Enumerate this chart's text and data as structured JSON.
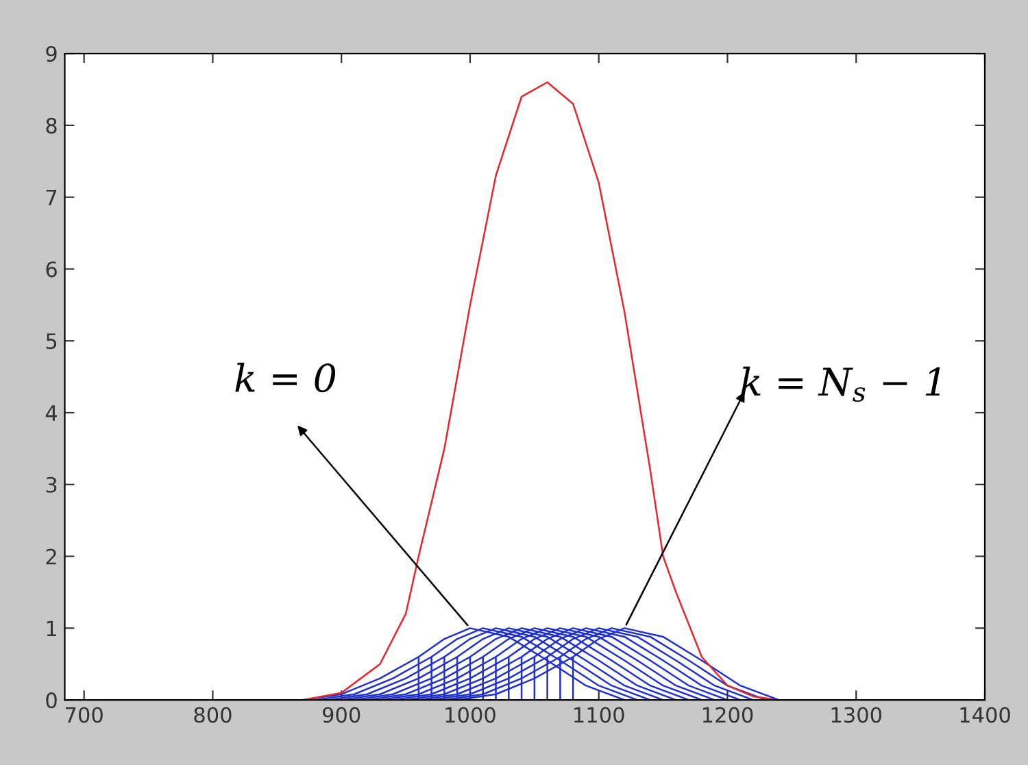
{
  "chart_data": {
    "type": "line",
    "xlim": [
      685,
      1400
    ],
    "xticks": [
      700,
      800,
      900,
      1000,
      1100,
      1200,
      1300,
      1400
    ],
    "ylim": [
      0,
      9
    ],
    "yticks": [
      0,
      1,
      2,
      3,
      4,
      5,
      6,
      7,
      8,
      9
    ],
    "annotations": [
      {
        "text": "k = 0",
        "x": 1000,
        "y": 1
      },
      {
        "text": "k = N$_{s}$ − 1",
        "x": 1120,
        "y": 1
      }
    ],
    "series": [
      {
        "color": "#e8262c",
        "x": [
          685,
          870,
          900,
          930,
          950,
          960,
          980,
          1000,
          1020,
          1040,
          1060,
          1080,
          1100,
          1120,
          1140,
          1150,
          1160,
          1180,
          1200,
          1220,
          1240,
          1400
        ],
        "values": [
          0,
          0,
          0.1,
          0.5,
          1.2,
          2,
          3.5,
          5.5,
          7.3,
          8.4,
          8.6,
          8.3,
          7.2,
          5.4,
          3.2,
          2,
          1.5,
          0.6,
          0.2,
          0.05,
          0,
          0
        ]
      },
      {
        "color": "#1f2fd0",
        "x": [
          870,
          900,
          930,
          960,
          960,
          960,
          980,
          1000,
          1030,
          1060,
          1090,
          1120
        ],
        "values": [
          0,
          0.08,
          0.3,
          0.6,
          0,
          0.6,
          0.85,
          1,
          0.88,
          0.55,
          0.2,
          0
        ]
      },
      {
        "color": "#1f2fd0",
        "x": [
          880,
          910,
          940,
          970,
          970,
          970,
          990,
          1010,
          1040,
          1070,
          1100,
          1130
        ],
        "values": [
          0,
          0.08,
          0.3,
          0.6,
          0,
          0.6,
          0.85,
          1,
          0.88,
          0.55,
          0.2,
          0
        ]
      },
      {
        "color": "#1f2fd0",
        "x": [
          890,
          920,
          950,
          980,
          980,
          980,
          1000,
          1020,
          1050,
          1080,
          1110,
          1140
        ],
        "values": [
          0,
          0.08,
          0.3,
          0.6,
          0,
          0.6,
          0.85,
          1,
          0.88,
          0.55,
          0.2,
          0
        ]
      },
      {
        "color": "#1f2fd0",
        "x": [
          900,
          930,
          960,
          990,
          990,
          990,
          1010,
          1030,
          1060,
          1090,
          1120,
          1150
        ],
        "values": [
          0,
          0.08,
          0.3,
          0.6,
          0,
          0.6,
          0.85,
          1,
          0.88,
          0.55,
          0.2,
          0
        ]
      },
      {
        "color": "#1f2fd0",
        "x": [
          910,
          940,
          970,
          1000,
          1000,
          1000,
          1020,
          1040,
          1070,
          1100,
          1130,
          1160
        ],
        "values": [
          0,
          0.08,
          0.3,
          0.6,
          0,
          0.6,
          0.85,
          1,
          0.88,
          0.55,
          0.2,
          0
        ]
      },
      {
        "color": "#1f2fd0",
        "x": [
          920,
          950,
          980,
          1010,
          1010,
          1010,
          1030,
          1050,
          1080,
          1110,
          1140,
          1170
        ],
        "values": [
          0,
          0.08,
          0.3,
          0.6,
          0,
          0.6,
          0.85,
          1,
          0.88,
          0.55,
          0.2,
          0
        ]
      },
      {
        "color": "#1f2fd0",
        "x": [
          930,
          960,
          990,
          1020,
          1020,
          1020,
          1040,
          1060,
          1090,
          1120,
          1150,
          1180
        ],
        "values": [
          0,
          0.08,
          0.3,
          0.6,
          0,
          0.6,
          0.85,
          1,
          0.88,
          0.55,
          0.2,
          0
        ]
      },
      {
        "color": "#1f2fd0",
        "x": [
          940,
          970,
          1000,
          1030,
          1030,
          1030,
          1050,
          1070,
          1100,
          1130,
          1160,
          1190
        ],
        "values": [
          0,
          0.08,
          0.3,
          0.6,
          0,
          0.6,
          0.85,
          1,
          0.88,
          0.55,
          0.2,
          0
        ]
      },
      {
        "color": "#1f2fd0",
        "x": [
          950,
          980,
          1010,
          1040,
          1040,
          1040,
          1060,
          1080,
          1110,
          1140,
          1170,
          1200
        ],
        "values": [
          0,
          0.08,
          0.3,
          0.6,
          0,
          0.6,
          0.85,
          1,
          0.88,
          0.55,
          0.2,
          0
        ]
      },
      {
        "color": "#1f2fd0",
        "x": [
          960,
          990,
          1020,
          1050,
          1050,
          1050,
          1070,
          1090,
          1120,
          1150,
          1180,
          1210
        ],
        "values": [
          0,
          0.08,
          0.3,
          0.6,
          0,
          0.6,
          0.85,
          1,
          0.88,
          0.55,
          0.2,
          0
        ]
      },
      {
        "color": "#1f2fd0",
        "x": [
          970,
          1000,
          1030,
          1060,
          1060,
          1060,
          1080,
          1100,
          1130,
          1160,
          1190,
          1220
        ],
        "values": [
          0,
          0.08,
          0.3,
          0.6,
          0,
          0.6,
          0.85,
          1,
          0.88,
          0.55,
          0.2,
          0
        ]
      },
      {
        "color": "#1f2fd0",
        "x": [
          980,
          1010,
          1040,
          1070,
          1070,
          1070,
          1090,
          1110,
          1140,
          1170,
          1200,
          1230
        ],
        "values": [
          0,
          0.08,
          0.3,
          0.6,
          0,
          0.6,
          0.85,
          1,
          0.88,
          0.55,
          0.2,
          0
        ]
      },
      {
        "color": "#1f2fd0",
        "x": [
          990,
          1020,
          1050,
          1080,
          1080,
          1080,
          1100,
          1120,
          1150,
          1180,
          1210,
          1240
        ],
        "values": [
          0,
          0.08,
          0.3,
          0.6,
          0,
          0.6,
          0.85,
          1,
          0.88,
          0.55,
          0.2,
          0
        ]
      }
    ]
  }
}
